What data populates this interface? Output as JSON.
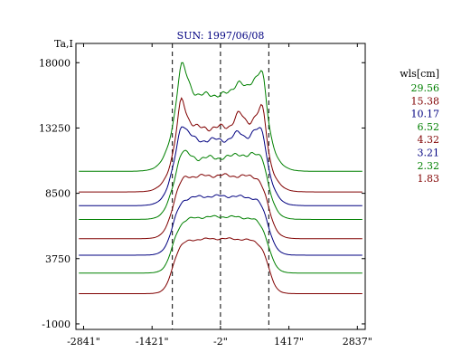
{
  "chart_data": {
    "type": "line",
    "title": "SUN: 1997/06/08",
    "ylabel": "Ta,I",
    "xlabel": "",
    "xlim": [
      -3000,
      3000
    ],
    "ylim": [
      -1400,
      19400
    ],
    "x_ticks": [
      -2841,
      -1421,
      -2,
      1417,
      2837
    ],
    "x_tick_labels": [
      "-2841\"",
      "-1421\"",
      "-2\"",
      "1417\"",
      "2837\""
    ],
    "y_ticks": [
      18000,
      13250,
      8500,
      3750,
      -1000
    ],
    "y_tick_labels": [
      "18000",
      "13250",
      "8500",
      "3750",
      "-1000"
    ],
    "vlines": [
      -1000,
      -2,
      1000
    ],
    "grid": false,
    "legend": {
      "title": "wls[cm]",
      "placement": "right"
    },
    "series": [
      {
        "name": "29.56",
        "color": "#008000",
        "baseline": 10100,
        "level": 5600,
        "limb": 2400,
        "peak_left": 1200,
        "peak_right": 1500,
        "wiggle": 250,
        "edge": 1000,
        "width": 130
      },
      {
        "name": "15.38",
        "color": "#800000",
        "baseline": 8600,
        "level": 4700,
        "limb": 1700,
        "peak_left": 1500,
        "peak_right": 1500,
        "wiggle": 250,
        "edge": 1000,
        "width": 125
      },
      {
        "name": "10.17",
        "color": "#000080",
        "baseline": 7600,
        "level": 4800,
        "limb": 1400,
        "peak_left": 700,
        "peak_right": 800,
        "wiggle": 200,
        "edge": 1000,
        "width": 115
      },
      {
        "name": "6.52",
        "color": "#008000",
        "baseline": 6600,
        "level": 4500,
        "limb": 800,
        "peak_left": 400,
        "peak_right": 500,
        "wiggle": 200,
        "edge": 1000,
        "width": 105
      },
      {
        "name": "4.32",
        "color": "#800000",
        "baseline": 5200,
        "level": 4600,
        "limb": 300,
        "peak_left": 0,
        "peak_right": 0,
        "wiggle": 150,
        "edge": 1000,
        "width": 95
      },
      {
        "name": "3.21",
        "color": "#000080",
        "baseline": 4000,
        "level": 4300,
        "limb": 100,
        "peak_left": 0,
        "peak_right": 0,
        "wiggle": 120,
        "edge": 1000,
        "width": 90
      },
      {
        "name": "2.32",
        "color": "#008000",
        "baseline": 2700,
        "level": 4100,
        "limb": 0,
        "peak_left": 0,
        "peak_right": 0,
        "wiggle": 100,
        "edge": 1000,
        "width": 85
      },
      {
        "name": "1.83",
        "color": "#800000",
        "baseline": 1200,
        "level": 4000,
        "limb": 0,
        "peak_left": 0,
        "peak_right": 0,
        "wiggle": 80,
        "edge": 1000,
        "width": 80
      }
    ]
  }
}
